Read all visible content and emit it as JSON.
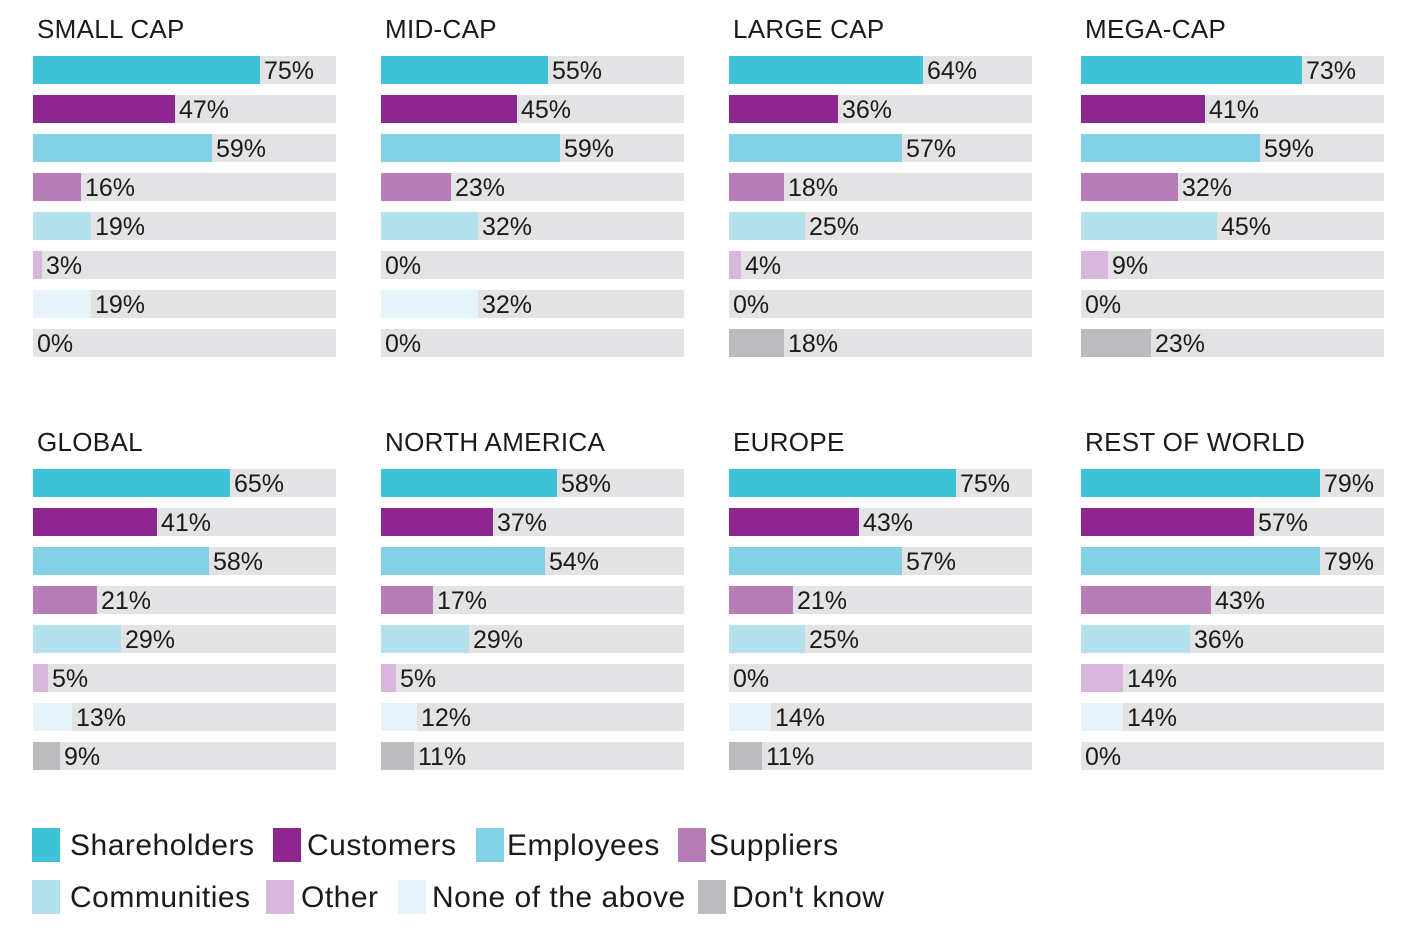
{
  "series_colors": {
    "Shareholders": "#3fc2d6",
    "Customers": "#8e2690",
    "Employees": "#82d1e4",
    "Suppliers": "#b67db8",
    "Communities": "#b5e1ec",
    "Other": "#d9b7dc",
    "None of the above": "#e6f4f9",
    "Don't know": "#bcbcbe"
  },
  "legend": [
    {
      "label": "Shareholders",
      "color": "#3fc2d6"
    },
    {
      "label": "Customers",
      "color": "#8e2690"
    },
    {
      "label": "Employees",
      "color": "#82d1e4"
    },
    {
      "label": "Suppliers",
      "color": "#b67db8"
    },
    {
      "label": "Communities",
      "color": "#b5e1ec"
    },
    {
      "label": "Other",
      "color": "#d9b7dc"
    },
    {
      "label": "None of the above",
      "color": "#e6f4f9"
    },
    {
      "label": "Don't know",
      "color": "#bcbcbe"
    }
  ],
  "chart_data": [
    {
      "type": "bar",
      "orientation": "horizontal",
      "title": "SMALL CAP",
      "xlim": [
        0,
        100
      ],
      "categories": [
        "Shareholders",
        "Customers",
        "Employees",
        "Suppliers",
        "Communities",
        "Other",
        "None of the above",
        "Don't know"
      ],
      "values": [
        75,
        47,
        59,
        16,
        19,
        3,
        19,
        0
      ],
      "labels": [
        "75%",
        "47%",
        "59%",
        "16%",
        "19%",
        "3%",
        "19%",
        "0%"
      ]
    },
    {
      "type": "bar",
      "orientation": "horizontal",
      "title": "MID-CAP",
      "xlim": [
        0,
        100
      ],
      "categories": [
        "Shareholders",
        "Customers",
        "Employees",
        "Suppliers",
        "Communities",
        "Other",
        "None of the above",
        "Don't know"
      ],
      "values": [
        55,
        45,
        59,
        23,
        32,
        0,
        32,
        0
      ],
      "labels": [
        "55%",
        "45%",
        "59%",
        "23%",
        "32%",
        "0%",
        "32%",
        "0%"
      ]
    },
    {
      "type": "bar",
      "orientation": "horizontal",
      "title": "LARGE CAP",
      "xlim": [
        0,
        100
      ],
      "categories": [
        "Shareholders",
        "Customers",
        "Employees",
        "Suppliers",
        "Communities",
        "Other",
        "None of the above",
        "Don't know"
      ],
      "values": [
        64,
        36,
        57,
        18,
        25,
        4,
        0,
        18
      ],
      "labels": [
        "64%",
        "36%",
        "57%",
        "18%",
        "25%",
        "4%",
        "0%",
        "18%"
      ]
    },
    {
      "type": "bar",
      "orientation": "horizontal",
      "title": "MEGA-CAP",
      "xlim": [
        0,
        100
      ],
      "categories": [
        "Shareholders",
        "Customers",
        "Employees",
        "Suppliers",
        "Communities",
        "Other",
        "None of the above",
        "Don't know"
      ],
      "values": [
        73,
        41,
        59,
        32,
        45,
        9,
        0,
        23
      ],
      "labels": [
        "73%",
        "41%",
        "59%",
        "32%",
        "45%",
        "9%",
        "0%",
        "23%"
      ]
    },
    {
      "type": "bar",
      "orientation": "horizontal",
      "title": "GLOBAL",
      "xlim": [
        0,
        100
      ],
      "categories": [
        "Shareholders",
        "Customers",
        "Employees",
        "Suppliers",
        "Communities",
        "Other",
        "None of the above",
        "Don't know"
      ],
      "values": [
        65,
        41,
        58,
        21,
        29,
        5,
        13,
        9
      ],
      "labels": [
        "65%",
        "41%",
        "58%",
        "21%",
        "29%",
        "5%",
        "13%",
        "9%"
      ]
    },
    {
      "type": "bar",
      "orientation": "horizontal",
      "title": "NORTH AMERICA",
      "xlim": [
        0,
        100
      ],
      "categories": [
        "Shareholders",
        "Customers",
        "Employees",
        "Suppliers",
        "Communities",
        "Other",
        "None of the above",
        "Don't know"
      ],
      "values": [
        58,
        37,
        54,
        17,
        29,
        5,
        12,
        11
      ],
      "labels": [
        "58%",
        "37%",
        "54%",
        "17%",
        "29%",
        "5%",
        "12%",
        "11%"
      ]
    },
    {
      "type": "bar",
      "orientation": "horizontal",
      "title": "EUROPE",
      "xlim": [
        0,
        100
      ],
      "categories": [
        "Shareholders",
        "Customers",
        "Employees",
        "Suppliers",
        "Communities",
        "Other",
        "None of the above",
        "Don't know"
      ],
      "values": [
        75,
        43,
        57,
        21,
        25,
        0,
        14,
        11
      ],
      "labels": [
        "75%",
        "43%",
        "57%",
        "21%",
        "25%",
        "0%",
        "14%",
        "11%"
      ]
    },
    {
      "type": "bar",
      "orientation": "horizontal",
      "title": "REST OF WORLD",
      "xlim": [
        0,
        100
      ],
      "categories": [
        "Shareholders",
        "Customers",
        "Employees",
        "Suppliers",
        "Communities",
        "Other",
        "None of the above",
        "Don't know"
      ],
      "values": [
        79,
        57,
        79,
        43,
        36,
        14,
        14,
        0
      ],
      "labels": [
        "79%",
        "57%",
        "79%",
        "43%",
        "36%",
        "14%",
        "14%",
        "0%"
      ]
    }
  ]
}
